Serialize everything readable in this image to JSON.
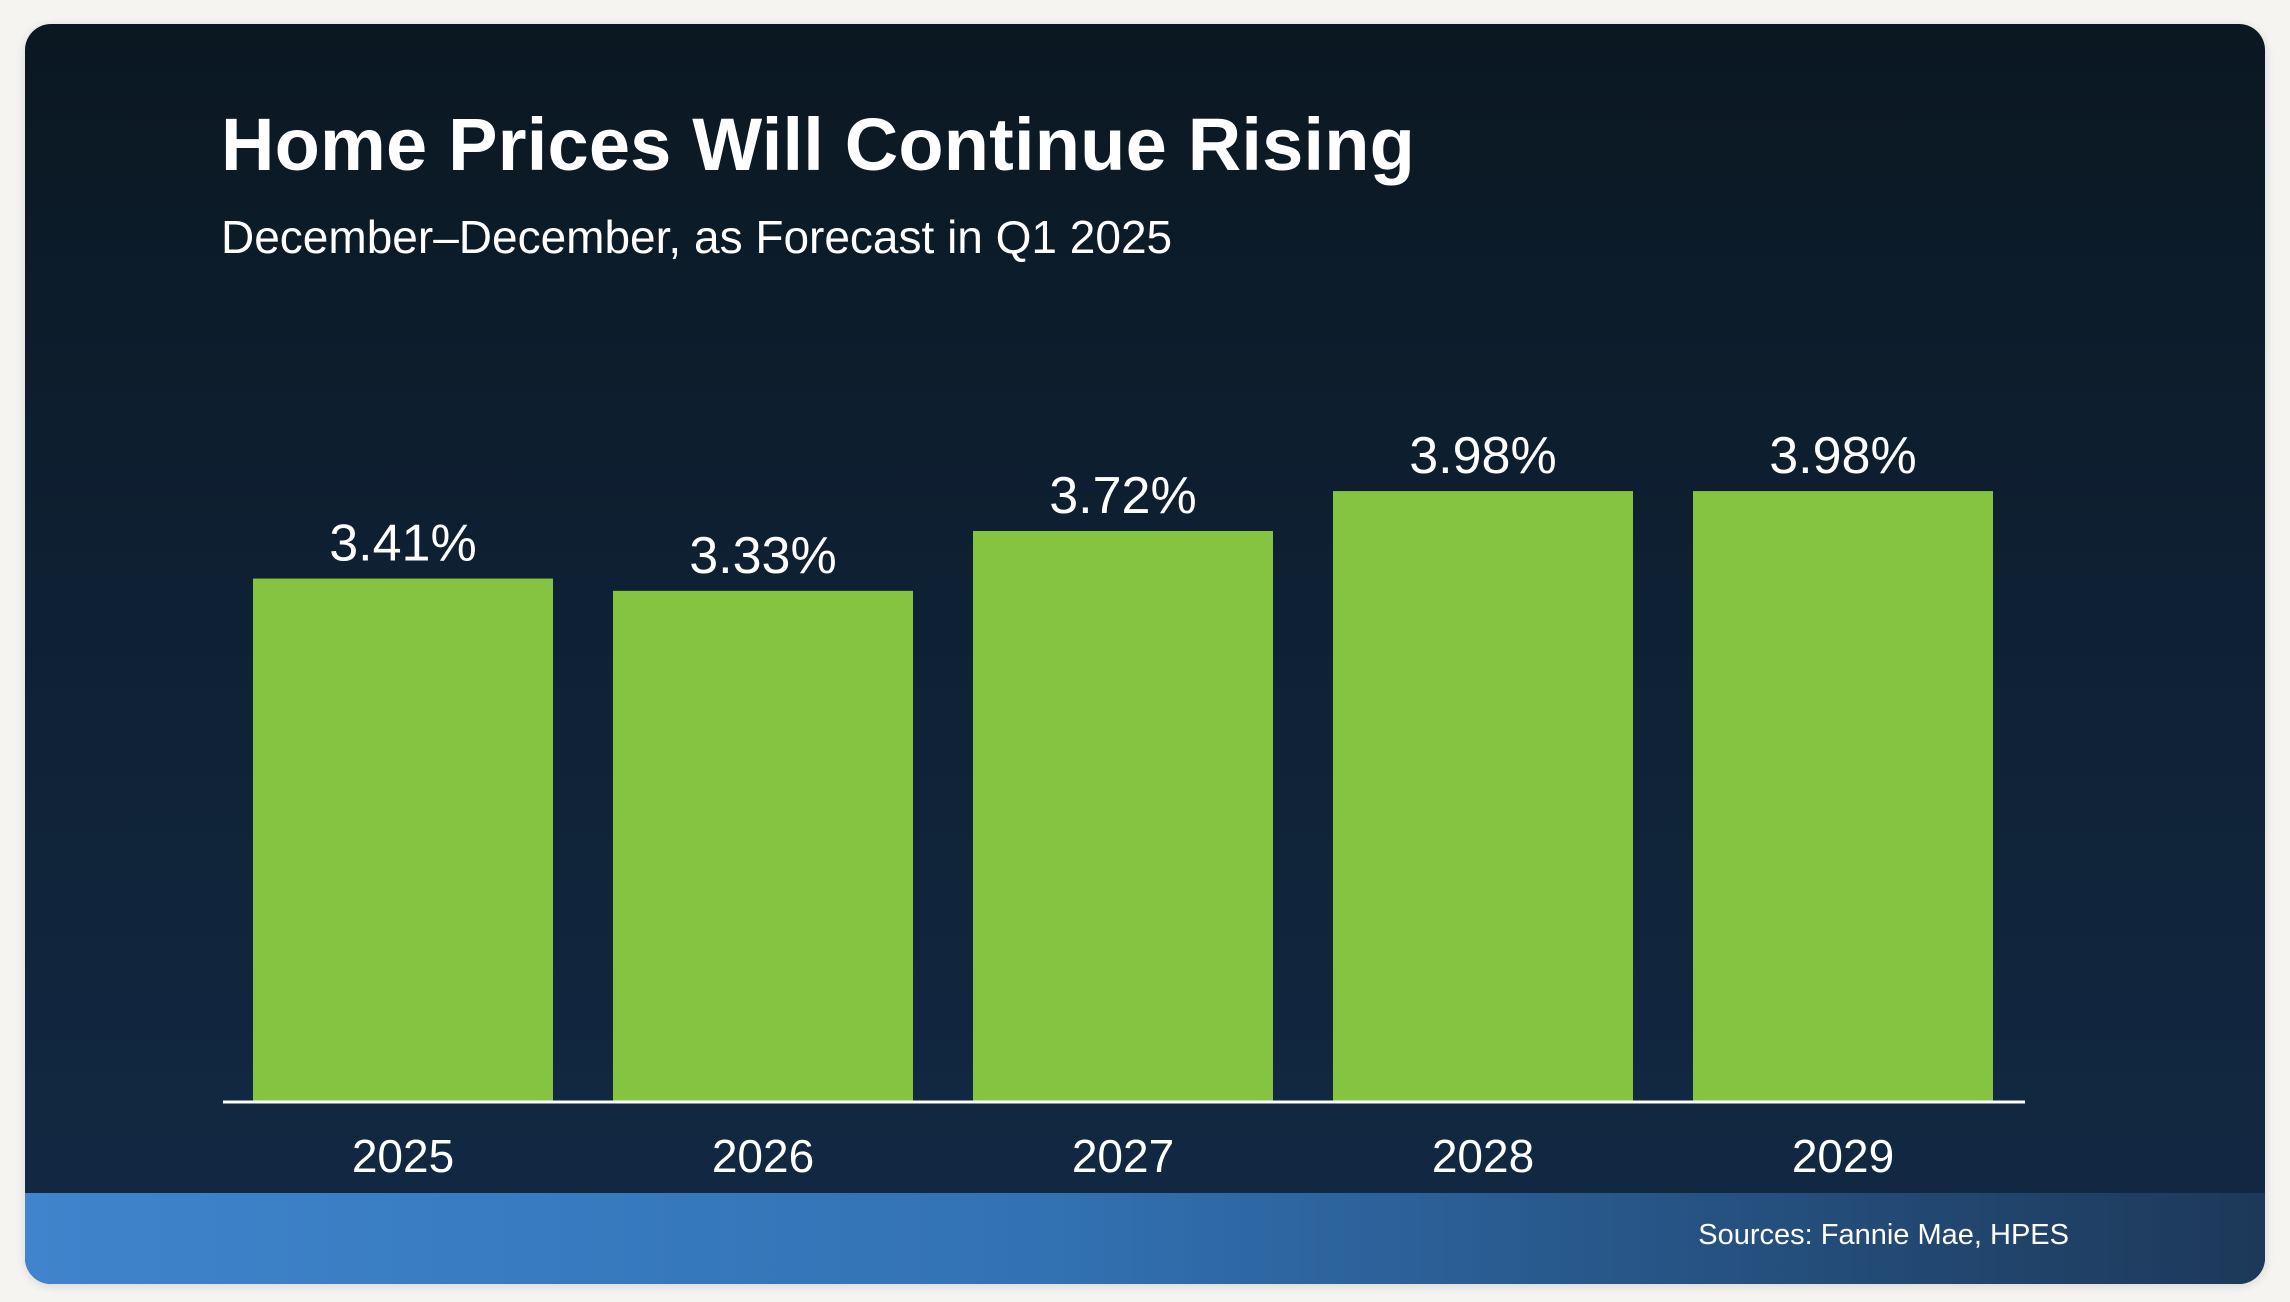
{
  "title": "Home Prices Will Continue Rising",
  "subtitle": "December–December, as Forecast in Q1 2025",
  "source": "Sources: Fannie Mae, HPES",
  "colors": {
    "bar": "#84c441",
    "text": "#ffffff",
    "axis": "#ffffff"
  },
  "chart_data": {
    "type": "bar",
    "title": "Home Prices Will Continue Rising",
    "subtitle": "December–December, as Forecast in Q1 2025",
    "categories": [
      "2025",
      "2026",
      "2027",
      "2028",
      "2029"
    ],
    "values": [
      3.41,
      3.33,
      3.72,
      3.98,
      3.98
    ],
    "data_labels": [
      "3.41%",
      "3.33%",
      "3.72%",
      "3.98%",
      "3.98%"
    ],
    "xlabel": "",
    "ylabel": "",
    "ylim": [
      0,
      4.0
    ],
    "grid": false,
    "legend": "none"
  }
}
